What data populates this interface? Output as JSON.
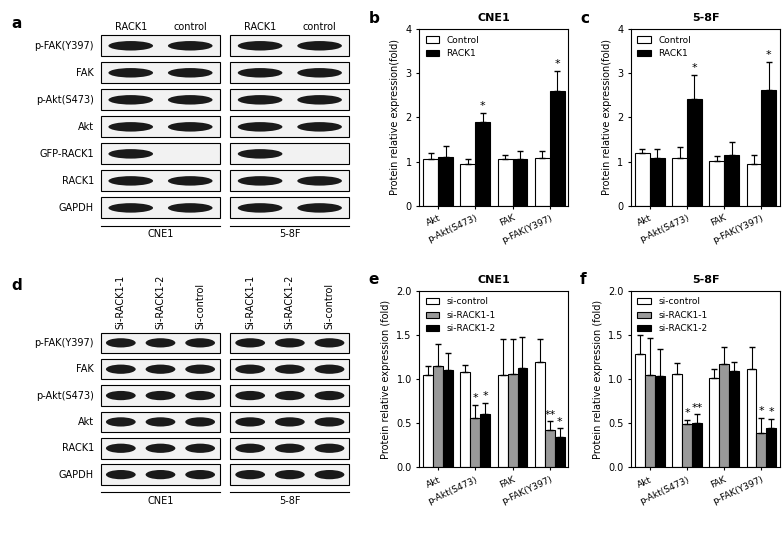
{
  "chart_data": [
    {
      "panel": "b",
      "type": "bar",
      "title": "CNE1",
      "y_label": "Protein relative expression(fold)",
      "categories": [
        "Akt",
        "p-Akt(S473)",
        "FAK",
        "p-FAK(Y397)"
      ],
      "ylim": [
        0,
        4
      ],
      "yticks": [
        0,
        1,
        2,
        3,
        4
      ],
      "legend": "upper left",
      "series": [
        {
          "name": "Control",
          "color": "#ffffff",
          "values": [
            1.05,
            0.95,
            1.05,
            1.08
          ],
          "errors": [
            0.15,
            0.1,
            0.1,
            0.15
          ],
          "significance": [
            null,
            null,
            null,
            null
          ]
        },
        {
          "name": "RACK1",
          "color": "#000000",
          "values": [
            1.1,
            1.9,
            1.05,
            2.6
          ],
          "errors": [
            0.25,
            0.2,
            0.2,
            0.45
          ],
          "significance": [
            null,
            "*",
            null,
            "*"
          ]
        }
      ]
    },
    {
      "panel": "c",
      "type": "bar",
      "title": "5-8F",
      "y_label": "Protein relative expression(fold)",
      "categories": [
        "Akt",
        "p-Akt(S473)",
        "FAK",
        "p-FAK(Y397)"
      ],
      "ylim": [
        0,
        4
      ],
      "yticks": [
        0,
        1,
        2,
        3,
        4
      ],
      "legend": "upper left",
      "series": [
        {
          "name": "Control",
          "color": "#ffffff",
          "values": [
            1.2,
            1.08,
            1.02,
            0.95
          ],
          "errors": [
            0.08,
            0.25,
            0.1,
            0.2
          ],
          "significance": [
            null,
            null,
            null,
            null
          ]
        },
        {
          "name": "RACK1",
          "color": "#000000",
          "values": [
            1.08,
            2.42,
            1.15,
            2.62
          ],
          "errors": [
            0.2,
            0.55,
            0.3,
            0.65
          ],
          "significance": [
            null,
            "*",
            null,
            "*"
          ]
        }
      ]
    },
    {
      "panel": "e",
      "type": "bar",
      "title": "CNE1",
      "y_label": "Protein relative expression (fold)",
      "categories": [
        "Akt",
        "p-Akt(S473)",
        "FAK",
        "p-FAK(Y397)"
      ],
      "ylim": [
        0,
        2.0
      ],
      "yticks": [
        {
          "value": 0,
          "label": "0.0"
        },
        0.5,
        {
          "value": 1,
          "label": "1.0"
        },
        1.5,
        {
          "value": 2,
          "label": "2.0"
        }
      ],
      "legend": "upper left",
      "series": [
        {
          "name": "si-control",
          "color": "#ffffff",
          "values": [
            1.05,
            1.08,
            1.05,
            1.2
          ],
          "errors": [
            0.1,
            0.08,
            0.4,
            0.25
          ],
          "significance": [
            null,
            null,
            null,
            null
          ]
        },
        {
          "name": "si-RACK1-1",
          "color": "#999999",
          "values": [
            1.15,
            0.56,
            1.06,
            0.42
          ],
          "errors": [
            0.25,
            0.15,
            0.4,
            0.1
          ],
          "significance": [
            null,
            "*",
            null,
            "**"
          ]
        },
        {
          "name": "si-RACK1-2",
          "color": "#000000",
          "values": [
            1.1,
            0.61,
            1.13,
            0.34
          ],
          "errors": [
            0.2,
            0.12,
            0.35,
            0.1
          ],
          "significance": [
            null,
            "*",
            null,
            "*"
          ]
        }
      ]
    },
    {
      "panel": "f",
      "type": "bar",
      "title": "5-8F",
      "y_label": "Protein relative expression (fold)",
      "categories": [
        "Akt",
        "p-Akt(S473)",
        "FAK",
        "p-FAK(Y397)"
      ],
      "ylim": [
        0,
        2.0
      ],
      "yticks": [
        {
          "value": 0,
          "label": "0.0"
        },
        0.5,
        {
          "value": 1,
          "label": "1.0"
        },
        1.5,
        {
          "value": 2,
          "label": "2.0"
        }
      ],
      "legend": "upper left",
      "series": [
        {
          "name": "si-control",
          "color": "#ffffff",
          "values": [
            1.28,
            1.06,
            1.01,
            1.12
          ],
          "errors": [
            0.22,
            0.12,
            0.1,
            0.25
          ],
          "significance": [
            null,
            null,
            null,
            null
          ]
        },
        {
          "name": "si-RACK1-1",
          "color": "#999999",
          "values": [
            1.05,
            0.49,
            1.17,
            0.39
          ],
          "errors": [
            0.42,
            0.05,
            0.2,
            0.17
          ],
          "significance": [
            null,
            "*",
            null,
            "*"
          ]
        },
        {
          "name": "si-RACK1-2",
          "color": "#000000",
          "values": [
            1.04,
            0.5,
            1.09,
            0.45
          ],
          "errors": [
            0.3,
            0.1,
            0.1,
            0.1
          ],
          "significance": [
            null,
            "**",
            null,
            "*"
          ]
        }
      ]
    }
  ],
  "blots": [
    {
      "panel": "a",
      "groups": [
        {
          "label": "CNE1",
          "lanes": [
            "RACK1",
            "control"
          ]
        },
        {
          "label": "5-8F",
          "lanes": [
            "RACK1",
            "control"
          ]
        }
      ],
      "rows": [
        {
          "label": "p-FAK(Y397)",
          "bands": [
            true,
            true,
            true,
            true
          ]
        },
        {
          "label": "FAK",
          "bands": [
            true,
            true,
            true,
            true
          ]
        },
        {
          "label": "p-Akt(S473)",
          "bands": [
            true,
            true,
            true,
            true
          ]
        },
        {
          "label": "Akt",
          "bands": [
            true,
            true,
            true,
            true
          ]
        },
        {
          "label": "GFP-RACK1",
          "bands": [
            true,
            false,
            true,
            false
          ]
        },
        {
          "label": "RACK1",
          "bands": [
            true,
            true,
            true,
            true
          ]
        },
        {
          "label": "GAPDH",
          "bands": [
            true,
            true,
            true,
            true
          ]
        }
      ]
    },
    {
      "panel": "d",
      "groups": [
        {
          "label": "CNE1",
          "lanes": [
            "Si-RACK1-1",
            "Si-RACK1-2",
            "Si-control"
          ]
        },
        {
          "label": "5-8F",
          "lanes": [
            "Si-RACK1-1",
            "Si-RACK1-2",
            "Si-control"
          ]
        }
      ],
      "rows": [
        {
          "label": "p-FAK(Y397)",
          "bands": [
            true,
            true,
            true,
            true,
            true,
            true
          ]
        },
        {
          "label": "FAK",
          "bands": [
            true,
            true,
            true,
            true,
            true,
            true
          ]
        },
        {
          "label": "p-Akt(S473)",
          "bands": [
            true,
            true,
            true,
            true,
            true,
            true
          ]
        },
        {
          "label": "Akt",
          "bands": [
            true,
            true,
            true,
            true,
            true,
            true
          ]
        },
        {
          "label": "RACK1",
          "bands": [
            true,
            true,
            true,
            true,
            true,
            true
          ]
        },
        {
          "label": "GAPDH",
          "bands": [
            true,
            true,
            true,
            true,
            true,
            true
          ]
        }
      ]
    }
  ]
}
